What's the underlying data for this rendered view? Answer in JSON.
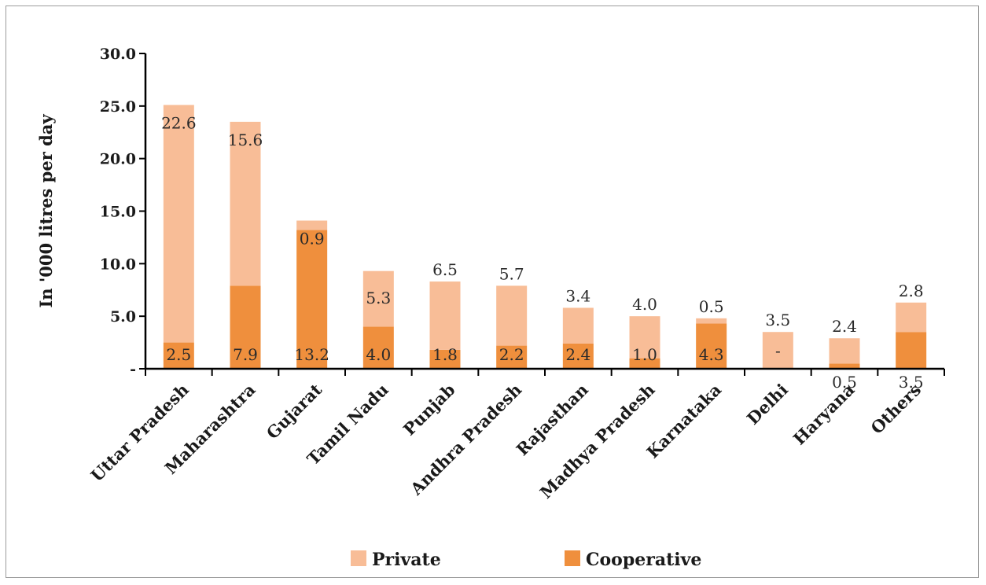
{
  "chart_data": {
    "type": "bar",
    "stacked": true,
    "ylabel": "In '000 litres per day",
    "ylim": [
      0,
      30
    ],
    "ytick_values": [
      0,
      5,
      10,
      15,
      20,
      25,
      30
    ],
    "ytick_labels": [
      "-",
      "5.0",
      "10.0",
      "15.0",
      "20.0",
      "25.0",
      "30.0"
    ],
    "grid": false,
    "legend_position": "bottom",
    "categories": [
      "Uttar Pradesh",
      "Maharashtra",
      "Gujarat",
      "Tamil Nadu",
      "Punjab",
      "Andhra Pradesh",
      "Rajasthan",
      "Madhya Pradesh",
      "Karnataka",
      "Delhi",
      "Haryana",
      "Others"
    ],
    "series": [
      {
        "name": "Cooperative",
        "color": "#ef8f3d",
        "values": [
          2.5,
          7.9,
          13.2,
          4.0,
          1.8,
          2.2,
          2.4,
          1.0,
          4.3,
          0,
          0.5,
          3.5
        ],
        "labels": [
          "2.5",
          "7.9",
          "13.2",
          "4.0",
          "1.8",
          "2.2",
          "2.4",
          "1.0",
          "4.3",
          "-",
          "0.5",
          "3.5"
        ]
      },
      {
        "name": "Private",
        "color": "#f8bd97",
        "values": [
          22.6,
          15.6,
          0.9,
          5.3,
          6.5,
          5.7,
          3.4,
          4.0,
          0.5,
          3.5,
          2.4,
          2.8
        ],
        "labels": [
          "22.6",
          "15.6",
          "0.9",
          "5.3",
          "6.5",
          "5.7",
          "3.4",
          "4.0",
          "0.5",
          "3.5",
          "2.4",
          "2.8"
        ]
      }
    ]
  }
}
